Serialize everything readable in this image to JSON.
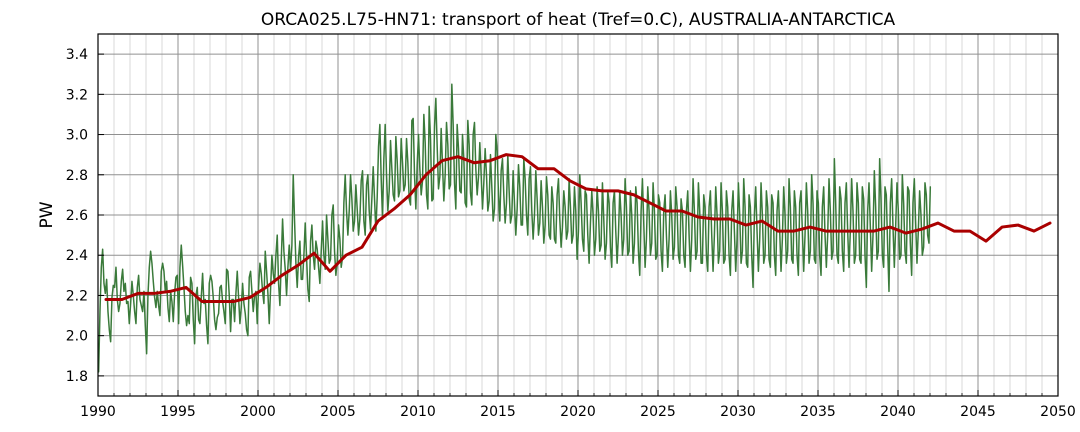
{
  "chart_data": {
    "type": "line",
    "title": "ORCA025.L75-HN71: transport of heat (Tref=0.C), AUSTRALIA-ANTARCTICA",
    "xlabel": "",
    "ylabel": "PW",
    "xlim": [
      1990,
      2050
    ],
    "ylim": [
      1.7,
      3.5
    ],
    "x_ticks": [
      1990,
      1995,
      2000,
      2005,
      2010,
      2015,
      2020,
      2025,
      2030,
      2035,
      2040,
      2045,
      2050
    ],
    "x_tick_labels": [
      "1990",
      "1995",
      "2000",
      "2005",
      "2010",
      "2015",
      "2020",
      "2025",
      "2030",
      "2035",
      "2040",
      "2045",
      "2050"
    ],
    "y_ticks": [
      1.8,
      2.0,
      2.2,
      2.4,
      2.6,
      2.8,
      3.0,
      3.2,
      3.4
    ],
    "y_tick_labels": [
      "1.8",
      "2.0",
      "2.2",
      "2.4",
      "2.6",
      "2.8",
      "3.0",
      "3.2",
      "3.4"
    ],
    "grid": true,
    "minor_grid": true,
    "legend": "none",
    "series": [
      {
        "style": "monthly",
        "color": "#3a7a3a",
        "x_start": 1990.04,
        "x_step": 0.0833,
        "values": [
          1.82,
          2.12,
          2.34,
          2.43,
          2.26,
          2.21,
          2.28,
          2.12,
          2.03,
          1.97,
          2.19,
          2.25,
          2.24,
          2.34,
          2.18,
          2.12,
          2.16,
          2.27,
          2.33,
          2.22,
          2.26,
          2.16,
          2.17,
          2.06,
          2.16,
          2.27,
          2.2,
          2.12,
          2.06,
          2.24,
          2.3,
          2.18,
          2.15,
          2.12,
          2.22,
          2.05,
          1.91,
          2.2,
          2.34,
          2.42,
          2.36,
          2.27,
          2.19,
          2.14,
          2.22,
          2.15,
          2.1,
          2.32,
          2.36,
          2.32,
          2.22,
          2.27,
          2.14,
          2.07,
          2.22,
          2.17,
          2.07,
          2.21,
          2.29,
          2.3,
          2.06,
          2.34,
          2.45,
          2.35,
          2.24,
          2.12,
          2.05,
          2.1,
          2.06,
          2.29,
          2.26,
          2.08,
          1.96,
          2.2,
          2.24,
          2.08,
          2.06,
          2.19,
          2.31,
          2.16,
          2.18,
          2.05,
          1.96,
          2.26,
          2.3,
          2.27,
          2.19,
          2.08,
          2.03,
          2.09,
          2.11,
          2.24,
          2.25,
          2.17,
          2.12,
          2.06,
          2.33,
          2.32,
          2.2,
          2.02,
          2.18,
          2.18,
          2.07,
          2.21,
          2.32,
          2.19,
          2.06,
          2.14,
          2.26,
          2.16,
          2.11,
          2.03,
          2.0,
          2.29,
          2.32,
          2.22,
          2.12,
          2.2,
          2.22,
          2.06,
          2.24,
          2.36,
          2.31,
          2.22,
          2.16,
          2.42,
          2.32,
          2.21,
          2.06,
          2.23,
          2.4,
          2.31,
          2.26,
          2.4,
          2.5,
          2.26,
          2.15,
          2.37,
          2.58,
          2.42,
          2.33,
          2.2,
          2.34,
          2.45,
          2.33,
          2.45,
          2.8,
          2.57,
          2.36,
          2.24,
          2.39,
          2.47,
          2.28,
          2.28,
          2.4,
          2.56,
          2.39,
          2.23,
          2.17,
          2.47,
          2.55,
          2.4,
          2.33,
          2.47,
          2.43,
          2.34,
          2.26,
          2.42,
          2.57,
          2.4,
          2.33,
          2.6,
          2.48,
          2.36,
          2.38,
          2.6,
          2.65,
          2.42,
          2.3,
          2.37,
          2.55,
          2.48,
          2.34,
          2.39,
          2.66,
          2.8,
          2.62,
          2.5,
          2.62,
          2.8,
          2.68,
          2.52,
          2.57,
          2.75,
          2.63,
          2.5,
          2.58,
          2.77,
          2.82,
          2.57,
          2.5,
          2.75,
          2.8,
          2.62,
          2.53,
          2.68,
          2.84,
          2.68,
          2.52,
          2.69,
          2.94,
          3.05,
          2.78,
          2.58,
          2.88,
          3.05,
          2.8,
          2.62,
          2.72,
          2.97,
          2.83,
          2.7,
          2.67,
          2.99,
          2.87,
          2.69,
          2.72,
          2.98,
          2.86,
          2.72,
          2.75,
          2.98,
          2.86,
          2.68,
          2.65,
          3.07,
          3.08,
          2.8,
          2.63,
          2.85,
          3.0,
          2.83,
          2.7,
          2.77,
          3.1,
          2.96,
          2.7,
          2.63,
          3.14,
          2.98,
          2.67,
          2.68,
          3.04,
          3.18,
          2.94,
          2.73,
          2.79,
          3.03,
          2.85,
          2.67,
          2.8,
          3.06,
          2.95,
          2.73,
          2.75,
          3.25,
          3.05,
          2.76,
          2.63,
          3.05,
          2.93,
          2.72,
          2.71,
          3.0,
          2.88,
          2.66,
          2.64,
          3.07,
          2.95,
          2.71,
          2.65,
          3.0,
          3.06,
          2.83,
          2.7,
          2.79,
          2.96,
          2.8,
          2.63,
          2.76,
          2.93,
          2.8,
          2.62,
          2.67,
          2.9,
          2.74,
          2.57,
          2.63,
          3.0,
          2.92,
          2.7,
          2.57,
          2.82,
          2.88,
          2.7,
          2.56,
          2.66,
          2.9,
          2.72,
          2.56,
          2.6,
          2.82,
          2.66,
          2.5,
          2.63,
          2.85,
          2.74,
          2.55,
          2.55,
          2.88,
          2.78,
          2.6,
          2.5,
          2.78,
          2.84,
          2.62,
          2.48,
          2.6,
          2.82,
          2.68,
          2.5,
          2.56,
          2.77,
          2.64,
          2.46,
          2.55,
          2.79,
          2.7,
          2.5,
          2.48,
          2.74,
          2.66,
          2.48,
          2.46,
          2.7,
          2.78,
          2.58,
          2.44,
          2.54,
          2.72,
          2.64,
          2.48,
          2.52,
          2.78,
          2.64,
          2.46,
          2.5,
          2.74,
          2.62,
          2.38,
          2.52,
          2.8,
          2.66,
          2.48,
          2.42,
          2.72,
          2.7,
          2.5,
          2.36,
          2.56,
          2.72,
          2.6,
          2.4,
          2.48,
          2.74,
          2.62,
          2.42,
          2.45,
          2.76,
          2.58,
          2.38,
          2.46,
          2.72,
          2.66,
          2.44,
          2.34,
          2.66,
          2.72,
          2.52,
          2.36,
          2.5,
          2.72,
          2.6,
          2.4,
          2.48,
          2.78,
          2.64,
          2.4,
          2.42,
          2.72,
          2.6,
          2.36,
          2.46,
          2.74,
          2.66,
          2.42,
          2.3,
          2.62,
          2.78,
          2.56,
          2.34,
          2.48,
          2.74,
          2.62,
          2.4,
          2.46,
          2.76,
          2.62,
          2.38,
          2.4,
          2.7,
          2.66,
          2.42,
          2.32,
          2.62,
          2.7,
          2.5,
          2.34,
          2.48,
          2.72,
          2.6,
          2.38,
          2.44,
          2.74,
          2.64,
          2.4,
          2.36,
          2.68,
          2.62,
          2.4,
          2.34,
          2.62,
          2.72,
          2.5,
          2.32,
          2.48,
          2.78,
          2.62,
          2.38,
          2.42,
          2.76,
          2.62,
          2.36,
          2.36,
          2.7,
          2.64,
          2.4,
          2.32,
          2.64,
          2.72,
          2.5,
          2.32,
          2.5,
          2.74,
          2.6,
          2.36,
          2.42,
          2.76,
          2.62,
          2.36,
          2.38,
          2.72,
          2.64,
          2.4,
          2.3,
          2.62,
          2.72,
          2.52,
          2.32,
          2.48,
          2.76,
          2.6,
          2.36,
          2.42,
          2.78,
          2.64,
          2.36,
          2.34,
          2.7,
          2.64,
          2.4,
          2.24,
          2.6,
          2.74,
          2.52,
          2.32,
          2.48,
          2.76,
          2.6,
          2.36,
          2.4,
          2.72,
          2.64,
          2.38,
          2.34,
          2.7,
          2.66,
          2.4,
          2.3,
          2.62,
          2.72,
          2.52,
          2.32,
          2.48,
          2.74,
          2.6,
          2.36,
          2.42,
          2.78,
          2.64,
          2.38,
          2.36,
          2.72,
          2.64,
          2.4,
          2.3,
          2.66,
          2.72,
          2.52,
          2.32,
          2.5,
          2.76,
          2.62,
          2.36,
          2.42,
          2.8,
          2.66,
          2.38,
          2.36,
          2.72,
          2.66,
          2.4,
          2.3,
          2.64,
          2.74,
          2.5,
          2.34,
          2.5,
          2.78,
          2.62,
          2.38,
          2.42,
          2.88,
          2.66,
          2.4,
          2.36,
          2.74,
          2.68,
          2.42,
          2.32,
          2.66,
          2.76,
          2.52,
          2.34,
          2.52,
          2.78,
          2.62,
          2.36,
          2.4,
          2.76,
          2.66,
          2.38,
          2.36,
          2.74,
          2.68,
          2.4,
          2.24,
          2.62,
          2.76,
          2.54,
          2.32,
          2.5,
          2.82,
          2.64,
          2.38,
          2.42,
          2.88,
          2.68,
          2.4,
          2.34,
          2.74,
          2.7,
          2.44,
          2.22,
          2.66,
          2.78,
          2.54,
          2.34,
          2.54,
          2.76,
          2.62,
          2.38,
          2.4,
          2.8,
          2.66,
          2.42,
          2.36,
          2.74,
          2.72,
          2.46,
          2.3,
          2.66,
          2.78,
          2.56,
          2.36,
          2.52,
          2.72,
          2.6,
          2.4,
          2.44,
          2.76,
          2.7,
          2.5,
          2.46,
          2.74
        ]
      },
      {
        "style": "annual-mean",
        "color": "#aa0000",
        "x": [
          1990.5,
          1991.5,
          1992.5,
          1993.5,
          1994.5,
          1995.5,
          1996.5,
          1997.5,
          1998.5,
          1999.5,
          2000.5,
          2001.5,
          2002.5,
          2003.5,
          2004.5,
          2005.5,
          2006.5,
          2007.5,
          2008.5,
          2009.5,
          2010.5,
          2011.5,
          2012.5,
          2013.5,
          2014.5,
          2015.5,
          2016.5,
          2017.5,
          2018.5,
          2019.5,
          2020.5,
          2021.5,
          2022.5,
          2023.5,
          2024.5,
          2025.5,
          2026.5,
          2027.5,
          2028.5,
          2029.5,
          2030.5,
          2031.5,
          2032.5,
          2033.5,
          2034.5,
          2035.5,
          2036.5,
          2037.5,
          2038.5,
          2039.5,
          2040.5,
          2041.5,
          2042.5,
          2043.5,
          2044.5,
          2045.5,
          2046.5,
          2047.5,
          2048.5,
          2049.5
        ],
        "values": [
          2.18,
          2.18,
          2.21,
          2.21,
          2.22,
          2.24,
          2.17,
          2.17,
          2.17,
          2.19,
          2.24,
          2.3,
          2.35,
          2.41,
          2.32,
          2.4,
          2.44,
          2.57,
          2.63,
          2.7,
          2.8,
          2.87,
          2.89,
          2.86,
          2.87,
          2.9,
          2.89,
          2.83,
          2.83,
          2.77,
          2.73,
          2.72,
          2.72,
          2.7,
          2.66,
          2.62,
          2.62,
          2.59,
          2.58,
          2.58,
          2.55,
          2.57,
          2.52,
          2.52,
          2.54,
          2.52,
          2.52,
          2.52,
          2.52,
          2.54,
          2.51,
          2.53,
          2.56,
          2.52,
          2.52,
          2.47,
          2.54,
          2.55,
          2.52,
          2.56
        ]
      }
    ]
  }
}
